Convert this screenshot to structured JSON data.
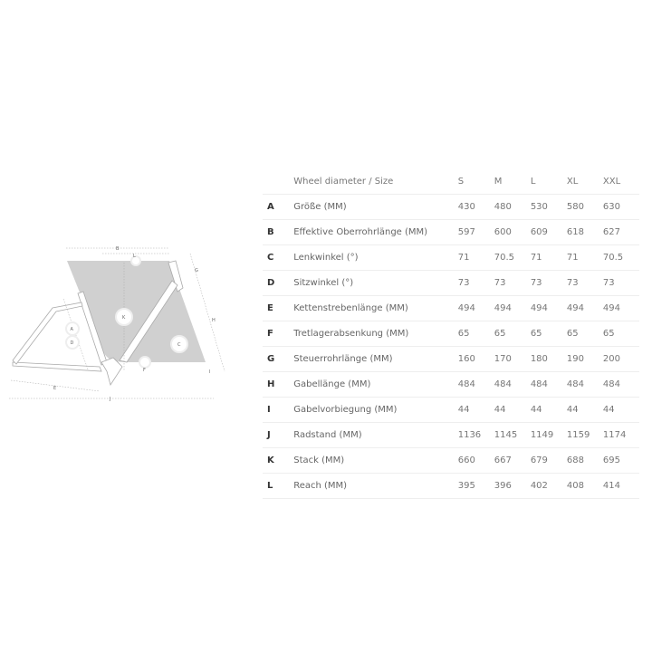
{
  "table": {
    "header": {
      "label": "Wheel diameter / Size",
      "sizes": [
        "S",
        "M",
        "L",
        "XL",
        "XXL"
      ]
    },
    "rows": [
      {
        "letter": "A",
        "label": "Größe (MM)",
        "values": [
          "430",
          "480",
          "530",
          "580",
          "630"
        ]
      },
      {
        "letter": "B",
        "label": "Effektive Oberrohrlänge (MM)",
        "values": [
          "597",
          "600",
          "609",
          "618",
          "627"
        ]
      },
      {
        "letter": "C",
        "label": "Lenkwinkel (°)",
        "values": [
          "71",
          "70.5",
          "71",
          "71",
          "70.5"
        ]
      },
      {
        "letter": "D",
        "label": "Sitzwinkel (°)",
        "values": [
          "73",
          "73",
          "73",
          "73",
          "73"
        ]
      },
      {
        "letter": "E",
        "label": "Kettenstrebenlänge (MM)",
        "values": [
          "494",
          "494",
          "494",
          "494",
          "494"
        ]
      },
      {
        "letter": "F",
        "label": "Tretlagerabsenkung (MM)",
        "values": [
          "65",
          "65",
          "65",
          "65",
          "65"
        ]
      },
      {
        "letter": "G",
        "label": "Steuerrohrlänge (MM)",
        "values": [
          "160",
          "170",
          "180",
          "190",
          "200"
        ]
      },
      {
        "letter": "H",
        "label": "Gabellänge (MM)",
        "values": [
          "484",
          "484",
          "484",
          "484",
          "484"
        ]
      },
      {
        "letter": "I",
        "label": "Gabelvorbiegung (MM)",
        "values": [
          "44",
          "44",
          "44",
          "44",
          "44"
        ]
      },
      {
        "letter": "J",
        "label": "Radstand (MM)",
        "values": [
          "1136",
          "1145",
          "1149",
          "1159",
          "1174"
        ]
      },
      {
        "letter": "K",
        "label": "Stack (MM)",
        "values": [
          "660",
          "667",
          "679",
          "688",
          "695"
        ]
      },
      {
        "letter": "L",
        "label": "Reach (MM)",
        "values": [
          "395",
          "396",
          "402",
          "408",
          "414"
        ]
      }
    ]
  },
  "diagram": {
    "labels": {
      "A": "A",
      "B": "B",
      "C": "C",
      "D": "D",
      "E": "E",
      "F": "F",
      "G": "G",
      "H": "H",
      "I": "I",
      "J": "J",
      "K": "K",
      "L": "L"
    },
    "colors": {
      "shade": "#cfcfcf",
      "frame": "#ffffff",
      "line": "#999999"
    }
  }
}
